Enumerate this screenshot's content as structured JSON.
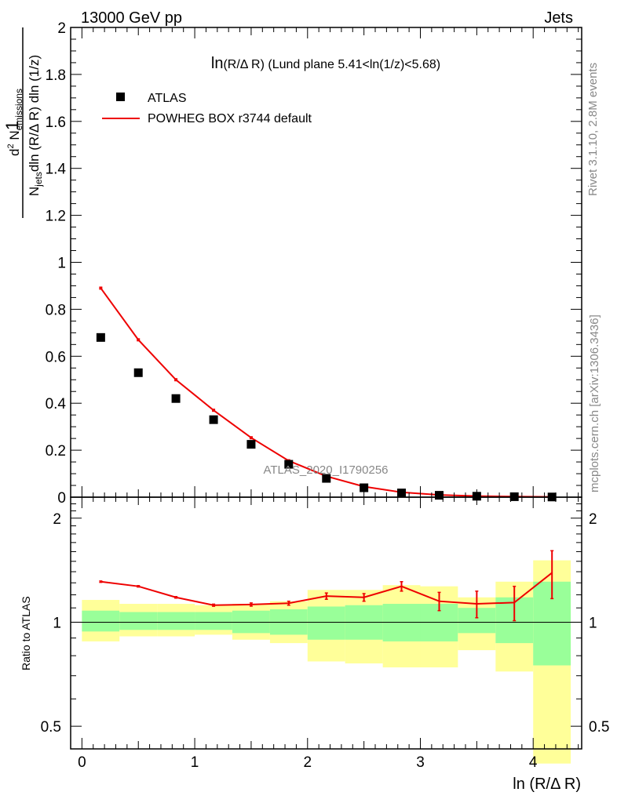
{
  "header": {
    "energy_label": "13000 GeV pp",
    "process_label": "Jets",
    "side_text_top": "Rivet 3.1.10,  2.8M events",
    "side_text_bottom": "mcplots.cern.ch [arXiv:1306.3436]",
    "watermark": "ATLAS_2020_I1790256"
  },
  "chart_data": [
    {
      "type": "scatter",
      "title": "ln(R/Δ R) (Lund plane 5.41<ln(1/z)<5.68)",
      "ylabel": "1/N_jets d²N_emissions / dln(R/ΔR) dln(1/z)",
      "xlim": [
        -0.1,
        4.43
      ],
      "ylim": [
        0,
        2
      ],
      "yticks": [
        0,
        0.2,
        0.4,
        0.6,
        0.8,
        1,
        1.2,
        1.4,
        1.6,
        1.8,
        2
      ],
      "legend_position": "top-left",
      "series": [
        {
          "name": "ATLAS",
          "marker": "square",
          "color": "#000000",
          "x": [
            0.167,
            0.5,
            0.833,
            1.167,
            1.5,
            1.833,
            2.167,
            2.5,
            2.833,
            3.167,
            3.5,
            3.833,
            4.167
          ],
          "y": [
            0.68,
            0.53,
            0.42,
            0.33,
            0.225,
            0.14,
            0.08,
            0.04,
            0.018,
            0.008,
            0.004,
            0.002,
            0.0008
          ]
        },
        {
          "name": "POWHEG BOX r3744 default",
          "marker": "line",
          "color": "#ee0000",
          "x": [
            0.167,
            0.5,
            0.833,
            1.167,
            1.5,
            1.833,
            2.167,
            2.5,
            2.833,
            3.167,
            3.5,
            3.833,
            4.167
          ],
          "y": [
            0.89,
            0.67,
            0.5,
            0.37,
            0.253,
            0.155,
            0.089,
            0.045,
            0.021,
            0.0095,
            0.0045,
            0.0023,
            0.0012
          ]
        }
      ]
    },
    {
      "type": "line",
      "xlabel": "ln (R/Δ R)",
      "ylabel": "Ratio to ATLAS",
      "yscale": "log",
      "xlim": [
        -0.1,
        4.43
      ],
      "ylim": [
        0.43,
        2.3
      ],
      "xticks": [
        0,
        1,
        2,
        3,
        4
      ],
      "yticks": [
        0.5,
        1,
        2
      ],
      "reference_line": 1,
      "bins": [
        {
          "lo": 0.0,
          "hi": 0.333,
          "green": [
            0.94,
            1.08
          ],
          "yellow": [
            0.88,
            1.16
          ]
        },
        {
          "lo": 0.333,
          "hi": 0.667,
          "green": [
            0.95,
            1.07
          ],
          "yellow": [
            0.91,
            1.13
          ]
        },
        {
          "lo": 0.667,
          "hi": 1.0,
          "green": [
            0.95,
            1.07
          ],
          "yellow": [
            0.91,
            1.13
          ]
        },
        {
          "lo": 1.0,
          "hi": 1.333,
          "green": [
            0.95,
            1.07
          ],
          "yellow": [
            0.92,
            1.12
          ]
        },
        {
          "lo": 1.333,
          "hi": 1.667,
          "green": [
            0.93,
            1.08
          ],
          "yellow": [
            0.89,
            1.13
          ]
        },
        {
          "lo": 1.667,
          "hi": 2.0,
          "green": [
            0.92,
            1.09
          ],
          "yellow": [
            0.87,
            1.15
          ]
        },
        {
          "lo": 2.0,
          "hi": 2.333,
          "green": [
            0.89,
            1.11
          ],
          "yellow": [
            0.77,
            1.24
          ]
        },
        {
          "lo": 2.333,
          "hi": 2.667,
          "green": [
            0.89,
            1.12
          ],
          "yellow": [
            0.76,
            1.24
          ]
        },
        {
          "lo": 2.667,
          "hi": 3.0,
          "green": [
            0.88,
            1.13
          ],
          "yellow": [
            0.74,
            1.28
          ]
        },
        {
          "lo": 3.0,
          "hi": 3.333,
          "green": [
            0.88,
            1.13
          ],
          "yellow": [
            0.74,
            1.27
          ]
        },
        {
          "lo": 3.333,
          "hi": 3.667,
          "green": [
            0.93,
            1.1
          ],
          "yellow": [
            0.83,
            1.18
          ]
        },
        {
          "lo": 3.667,
          "hi": 4.0,
          "green": [
            0.87,
            1.18
          ],
          "yellow": [
            0.72,
            1.31
          ]
        },
        {
          "lo": 4.0,
          "hi": 4.333,
          "green": [
            0.75,
            1.31
          ],
          "yellow": [
            0.39,
            1.51
          ]
        }
      ],
      "series": [
        {
          "name": "POWHEG BOX r3744 default",
          "color": "#ee0000",
          "x": [
            0.167,
            0.5,
            0.833,
            1.167,
            1.5,
            1.833,
            2.167,
            2.5,
            2.833,
            3.167,
            3.5,
            3.833,
            4.167
          ],
          "y": [
            1.31,
            1.27,
            1.18,
            1.12,
            1.125,
            1.135,
            1.19,
            1.18,
            1.27,
            1.15,
            1.13,
            1.14,
            1.39
          ],
          "err": [
            0.006,
            0.006,
            0.006,
            0.008,
            0.012,
            0.015,
            0.025,
            0.03,
            0.04,
            0.07,
            0.1,
            0.13,
            0.22
          ]
        }
      ],
      "colors": {
        "green_band": "#99ff99",
        "yellow_band": "#ffff99"
      }
    }
  ]
}
